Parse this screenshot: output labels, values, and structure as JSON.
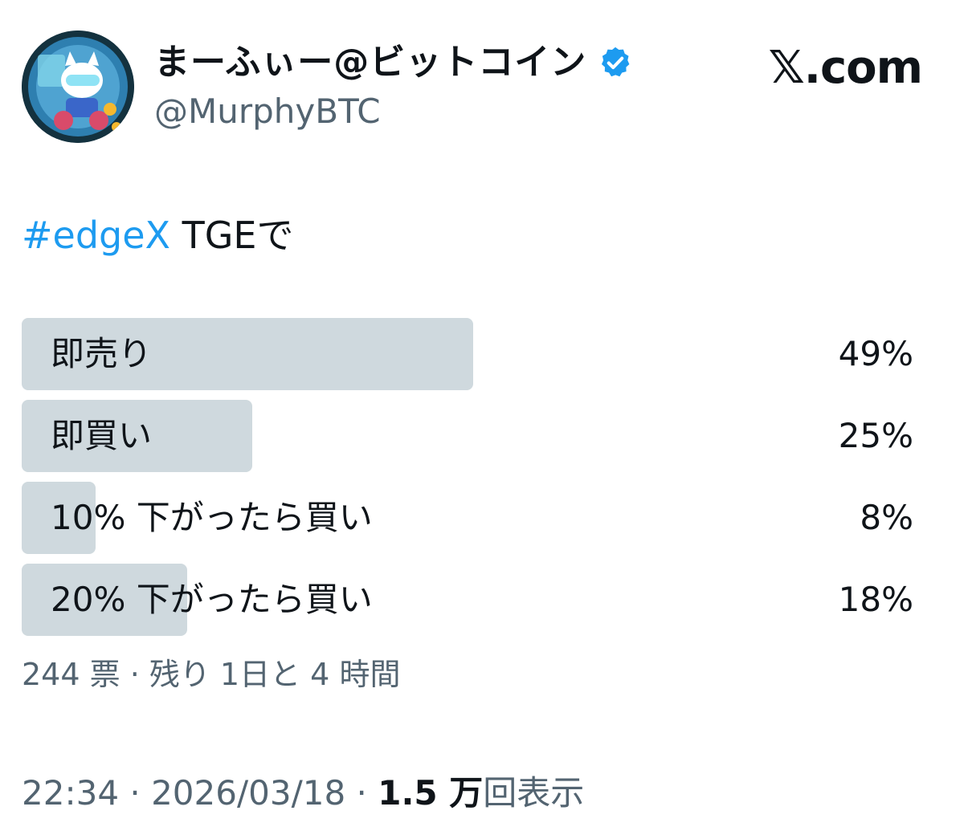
{
  "author": {
    "display_name": "まーふぃー@ビットコイン",
    "handle": "@MurphyBTC",
    "verified_color": "#1d9bf0"
  },
  "brand": "𝕏.com",
  "tweet": {
    "hashtag": "#edgeX",
    "text": " TGEで"
  },
  "poll": {
    "bar_color": "#cfd9de",
    "options": [
      {
        "label": "即売り",
        "percent_text": "49%",
        "percent": 49
      },
      {
        "label": "即買い",
        "percent_text": "25%",
        "percent": 25
      },
      {
        "label": "10% 下がったら買い",
        "percent_text": "8%",
        "percent": 8
      },
      {
        "label": "20% 下がったら買い",
        "percent_text": "18%",
        "percent": 18
      }
    ],
    "meta": "244 票 · 残り 1日と 4 時間"
  },
  "footer": {
    "time_date": "22:34 · 2026/03/18 · ",
    "views_count": "1.5 万",
    "views_label": "回表示"
  }
}
